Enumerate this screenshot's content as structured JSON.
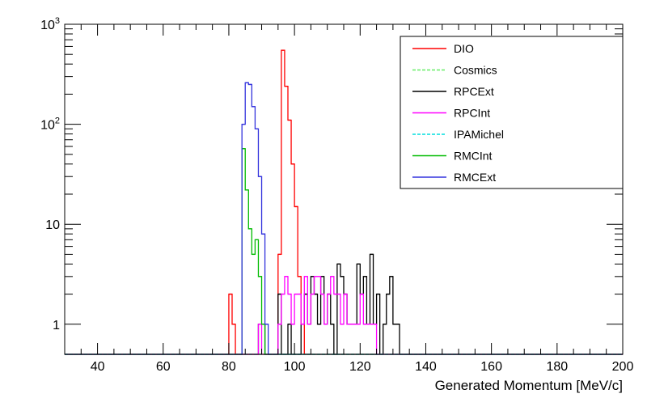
{
  "chart_data": {
    "type": "line",
    "style": "step-histogram",
    "xlabel": "Generated Momentum [MeV/c]",
    "ylabel": "",
    "xlim": [
      30,
      200
    ],
    "ylim": [
      0.5,
      1000
    ],
    "y_scale": "log",
    "bin_width": 1,
    "xticks": [
      "40",
      "60",
      "80",
      "100",
      "120",
      "140",
      "160",
      "180",
      "200"
    ],
    "yticks": [
      {
        "value": 1,
        "label": "1",
        "sup": ""
      },
      {
        "value": 10,
        "label": "10",
        "sup": ""
      },
      {
        "value": 100,
        "label": "10",
        "sup": "2"
      },
      {
        "value": 1000,
        "label": "10",
        "sup": "3"
      }
    ],
    "legend_position": "top-right",
    "grid": false,
    "series": [
      {
        "name": "DIO",
        "color": "#ff0000",
        "dash": "",
        "points": [
          [
            80,
            2
          ],
          [
            81,
            1
          ],
          [
            95,
            5
          ],
          [
            96,
            550
          ],
          [
            97,
            240
          ],
          [
            98,
            110
          ],
          [
            99,
            40
          ],
          [
            100,
            15
          ],
          [
            101,
            3
          ],
          [
            102,
            1
          ]
        ]
      },
      {
        "name": "Cosmics",
        "color": "#66ee66",
        "dash": "4,2",
        "points": []
      },
      {
        "name": "RPCExt",
        "color": "#000000",
        "dash": "",
        "points": [
          [
            89,
            1
          ],
          [
            90,
            1
          ],
          [
            95,
            2
          ],
          [
            98,
            1
          ],
          [
            102,
            1
          ],
          [
            103,
            2
          ],
          [
            104,
            1
          ],
          [
            105,
            3
          ],
          [
            106,
            2
          ],
          [
            107,
            1
          ],
          [
            108,
            3
          ],
          [
            109,
            1
          ],
          [
            110,
            2
          ],
          [
            111,
            1
          ],
          [
            113,
            4
          ],
          [
            114,
            3
          ],
          [
            115,
            2
          ],
          [
            116,
            1
          ],
          [
            117,
            1
          ],
          [
            118,
            1
          ],
          [
            119,
            4
          ],
          [
            120,
            2
          ],
          [
            121,
            3
          ],
          [
            122,
            1
          ],
          [
            123,
            5
          ],
          [
            124,
            1
          ],
          [
            125,
            2
          ],
          [
            127,
            1
          ],
          [
            128,
            2
          ],
          [
            129,
            3
          ],
          [
            130,
            1
          ],
          [
            131,
            1
          ]
        ]
      },
      {
        "name": "RPCInt",
        "color": "#ff00ff",
        "dash": "",
        "points": [
          [
            89,
            1
          ],
          [
            95,
            1
          ],
          [
            96,
            2
          ],
          [
            97,
            3
          ],
          [
            98,
            2
          ],
          [
            99,
            1
          ],
          [
            100,
            2
          ],
          [
            101,
            2
          ],
          [
            102,
            1
          ],
          [
            103,
            3
          ],
          [
            104,
            1
          ],
          [
            105,
            2
          ],
          [
            106,
            3
          ],
          [
            107,
            3
          ],
          [
            108,
            2
          ],
          [
            109,
            1
          ],
          [
            110,
            2
          ],
          [
            111,
            3
          ],
          [
            112,
            2
          ],
          [
            113,
            2
          ],
          [
            114,
            1
          ],
          [
            115,
            2
          ],
          [
            116,
            1
          ],
          [
            117,
            1
          ],
          [
            118,
            1
          ],
          [
            119,
            1
          ],
          [
            120,
            2
          ],
          [
            121,
            1
          ],
          [
            122,
            1
          ],
          [
            123,
            1
          ],
          [
            124,
            1
          ]
        ]
      },
      {
        "name": "IPAMichel",
        "color": "#00dddd",
        "dash": "4,2",
        "points": []
      },
      {
        "name": "RMCInt",
        "color": "#00bb00",
        "dash": "",
        "points": [
          [
            84,
            57
          ],
          [
            85,
            22
          ],
          [
            86,
            9
          ],
          [
            87,
            5
          ],
          [
            88,
            7
          ],
          [
            89,
            3
          ],
          [
            90,
            1
          ]
        ]
      },
      {
        "name": "RMCExt",
        "color": "#3333dd",
        "dash": "",
        "points": [
          [
            84,
            100
          ],
          [
            85,
            260
          ],
          [
            86,
            250
          ],
          [
            87,
            150
          ],
          [
            88,
            90
          ],
          [
            89,
            30
          ],
          [
            90,
            8
          ],
          [
            91,
            1
          ]
        ]
      }
    ]
  }
}
